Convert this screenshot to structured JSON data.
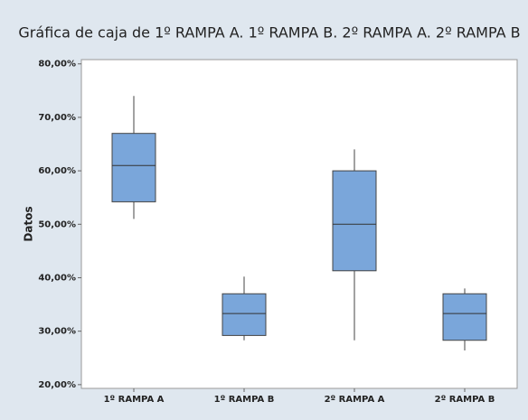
{
  "chart_data": {
    "type": "box",
    "title": "Gráfica de caja de 1º RAMPA A. 1º RAMPA B. 2º RAMPA A. 2º RAMPA B",
    "y_label": "Datos",
    "categories": [
      "1º RAMPA A",
      "1º RAMPA B",
      "2º RAMPA A",
      "2º RAMPA B"
    ],
    "min": [
      51,
      28.3,
      28.3,
      26.4
    ],
    "q1": [
      54.2,
      29.2,
      41.3,
      28.3
    ],
    "median": [
      61,
      33.3,
      50,
      33.3
    ],
    "q3": [
      67,
      37,
      60,
      37
    ],
    "max": [
      74,
      40.2,
      64,
      38
    ],
    "color": "#7aa6da",
    "ylim": [
      19.3,
      80.8
    ],
    "yticks": [
      {
        "value": 20,
        "label": "20,00%"
      },
      {
        "value": 30,
        "label": "30,00%"
      },
      {
        "value": 40,
        "label": "40,00%"
      },
      {
        "value": 50,
        "label": "50,00%"
      },
      {
        "value": 60,
        "label": "60,00%"
      },
      {
        "value": 70,
        "label": "70,00%"
      },
      {
        "value": 80,
        "label": "80,00%"
      }
    ]
  }
}
